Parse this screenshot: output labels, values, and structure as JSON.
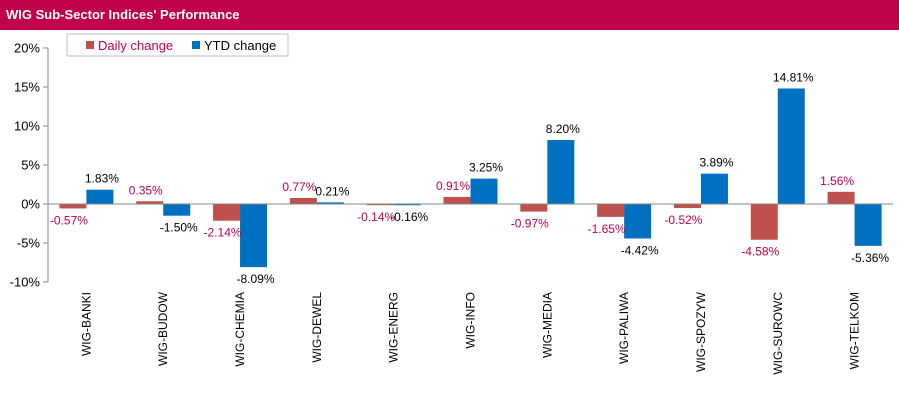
{
  "title": "WIG Sub-Sector Indices' Performance",
  "chart_data": {
    "type": "bar",
    "title": "WIG Sub-Sector Indices' Performance",
    "categories": [
      "WIG-BANKI",
      "WIG-BUDOW",
      "WIG-CHEMIA",
      "WIG-DEWEL",
      "WIG-ENERG",
      "WIG-INFO",
      "WIG-MEDIA",
      "WIG-PALIWA",
      "WIG-SPOZYW",
      "WIG-SUROWC",
      "WIG-TELKOM"
    ],
    "series": [
      {
        "name": "Daily change",
        "color": "#C0504D",
        "label_color": "#C0004B",
        "values": [
          -0.57,
          0.35,
          -2.14,
          0.77,
          -0.14,
          0.91,
          -0.97,
          -1.65,
          -0.52,
          -4.58,
          1.56
        ],
        "labels": [
          "-0.57%",
          "0.35%",
          "-2.14%",
          "0.77%",
          "-0.14%",
          "0.91%",
          "-0.97%",
          "-1.65%",
          "-0.52%",
          "-4.58%",
          "1.56%"
        ]
      },
      {
        "name": "YTD change",
        "color": "#0070C0",
        "label_color": "#000000",
        "values": [
          1.83,
          -1.5,
          -8.09,
          0.21,
          -0.16,
          3.25,
          8.2,
          -4.42,
          3.89,
          14.81,
          -5.36
        ],
        "labels": [
          "1.83%",
          "-1.50%",
          "-8.09%",
          "0.21%",
          "-0.16%",
          "3.25%",
          "8.20%",
          "-4.42%",
          "3.89%",
          "14.81%",
          "-5.36%"
        ]
      }
    ],
    "yticks": [
      20,
      15,
      10,
      5,
      0,
      -5,
      -10
    ],
    "ytick_labels": [
      "20%",
      "15%",
      "10%",
      "5%",
      "0%",
      "-5%",
      "-10%"
    ],
    "ylim": [
      -10,
      20
    ],
    "grid": false,
    "legend": "top-left"
  }
}
